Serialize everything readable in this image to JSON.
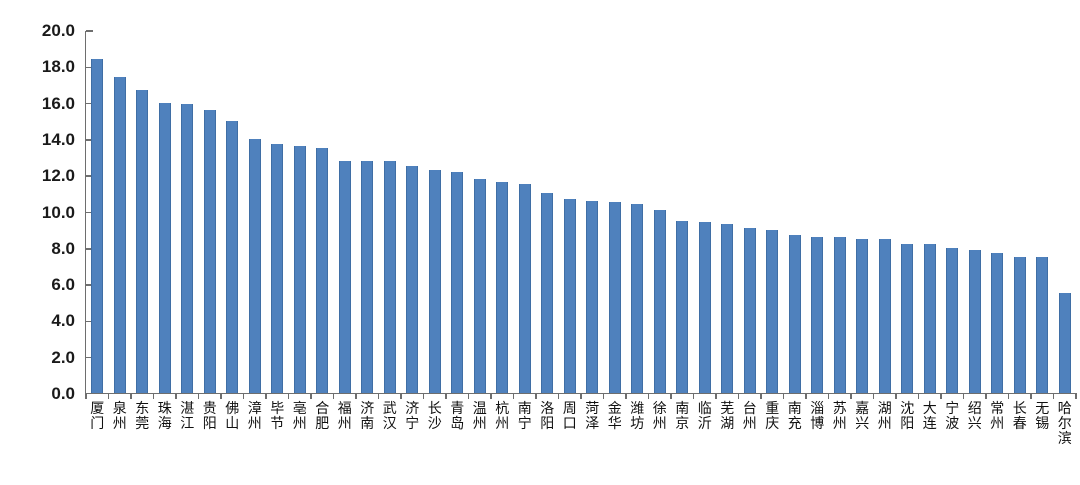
{
  "chart_data": {
    "type": "bar",
    "title": "",
    "xlabel": "",
    "ylabel": "",
    "ylim": [
      0,
      20
    ],
    "grid": false,
    "legend_position": "none",
    "bar_color": "#4F81BD",
    "axis_color": "#6e6e6e",
    "y_ticks": [
      {
        "value": 20,
        "label": "20.0"
      },
      {
        "value": 18,
        "label": "18.0"
      },
      {
        "value": 16,
        "label": "16.0"
      },
      {
        "value": 14,
        "label": "14.0"
      },
      {
        "value": 12,
        "label": "12.0"
      },
      {
        "value": 10,
        "label": "10.0"
      },
      {
        "value": 8,
        "label": "8.0"
      },
      {
        "value": 6,
        "label": "6.0"
      },
      {
        "value": 4,
        "label": "4.0"
      },
      {
        "value": 2,
        "label": "2.0"
      },
      {
        "value": 0,
        "label": "0.0"
      }
    ],
    "categories": [
      "厦门",
      "泉州",
      "东莞",
      "珠海",
      "湛江",
      "贵阳",
      "佛山",
      "漳州",
      "毕节",
      "亳州",
      "合肥",
      "福州",
      "济南",
      "武汉",
      "济宁",
      "长沙",
      "青岛",
      "温州",
      "杭州",
      "南宁",
      "洛阳",
      "周口",
      "菏泽",
      "金华",
      "潍坊",
      "徐州",
      "南京",
      "临沂",
      "芜湖",
      "台州",
      "重庆",
      "南充",
      "淄博",
      "苏州",
      "嘉兴",
      "湖州",
      "沈阳",
      "大连",
      "宁波",
      "绍兴",
      "常州",
      "长春",
      "无锡",
      "哈尔滨"
    ],
    "values": [
      18.4,
      17.4,
      16.7,
      16.0,
      15.9,
      15.6,
      15.0,
      14.0,
      13.7,
      13.6,
      13.5,
      12.8,
      12.8,
      12.8,
      12.5,
      12.3,
      12.2,
      11.8,
      11.6,
      11.5,
      11.0,
      10.7,
      10.6,
      10.5,
      10.4,
      10.1,
      9.5,
      9.4,
      9.3,
      9.1,
      9.0,
      8.7,
      8.6,
      8.6,
      8.5,
      8.5,
      8.2,
      8.2,
      8.0,
      7.9,
      7.7,
      7.5,
      7.5,
      5.5
    ]
  }
}
